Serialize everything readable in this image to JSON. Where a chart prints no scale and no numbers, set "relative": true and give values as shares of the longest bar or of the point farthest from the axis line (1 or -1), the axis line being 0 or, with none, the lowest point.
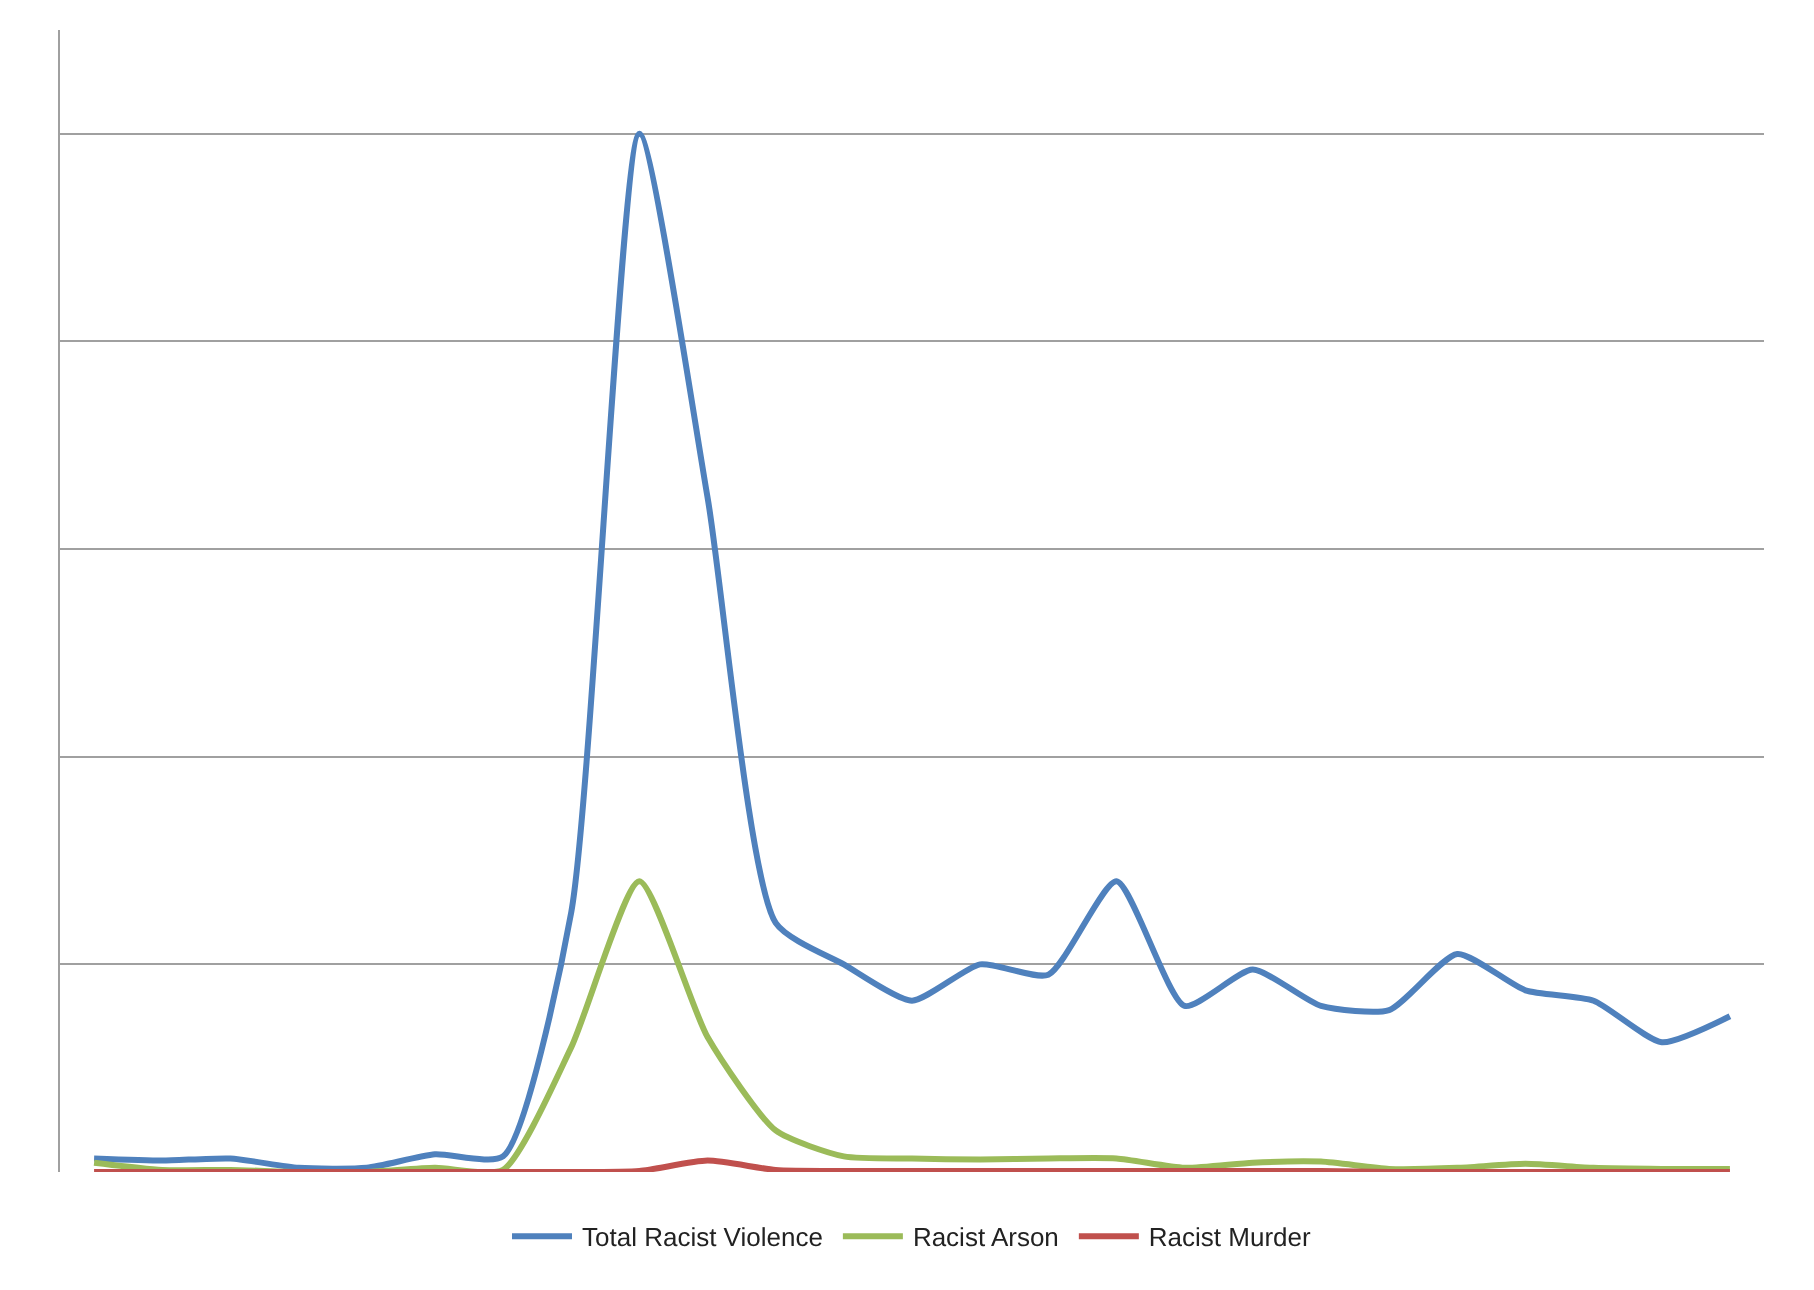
{
  "chart_data": {
    "type": "line",
    "relative": true,
    "grid": "y",
    "legend": "bottom",
    "marker": "none",
    "line_style": "solid",
    "categories": [
      null,
      null,
      null,
      null,
      null,
      null,
      null,
      null,
      null,
      null,
      null,
      null,
      null,
      null,
      null,
      null,
      null,
      null,
      null,
      null,
      null,
      null,
      null,
      null,
      null
    ],
    "series": [
      {
        "name": "Total Racist Violence",
        "color": "#4f81bd",
        "values": [
          0.013,
          0.011,
          0.013,
          0.004,
          0.004,
          0.017,
          0.015,
          0.25,
          1.0,
          0.65,
          0.24,
          0.2,
          0.165,
          0.2,
          0.19,
          0.28,
          0.16,
          0.195,
          0.16,
          0.156,
          0.21,
          0.175,
          0.165,
          0.125,
          0.15
        ]
      },
      {
        "name": "Racist Arson",
        "color": "#9bbb59",
        "values": [
          0.009,
          0.002,
          0.002,
          0,
          0,
          0.004,
          0.002,
          0.12,
          0.28,
          0.13,
          0.04,
          0.015,
          0.013,
          0.012,
          0.013,
          0.013,
          0.004,
          0.009,
          0.01,
          0.003,
          0.004,
          0.008,
          0.004,
          0.003,
          0.003
        ]
      },
      {
        "name": "Racist Murder",
        "color": "#c0504d",
        "values": [
          0,
          0,
          0,
          0,
          0,
          0,
          0,
          0,
          0.001,
          0.011,
          0.002,
          0.001,
          0.001,
          0.001,
          0.001,
          0.001,
          0.001,
          0.001,
          0.001,
          0,
          0,
          0,
          0,
          0,
          0
        ]
      }
    ]
  }
}
